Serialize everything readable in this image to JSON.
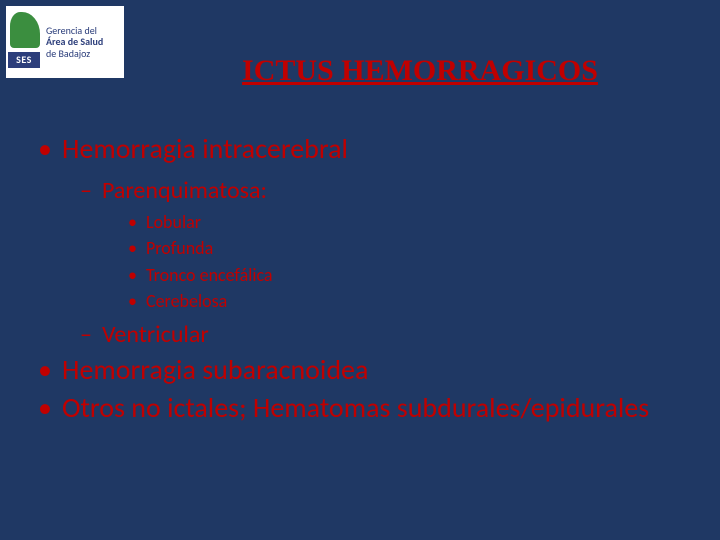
{
  "logo": {
    "line1": "Gerencia del",
    "line2_bold": "Área de Salud",
    "line3": "de Badajoz",
    "ses": "SES"
  },
  "title": "ICTUS HEMORRAGICOS",
  "bullets": {
    "b1": "Hemorragia intracerebral",
    "b1_s1": "Parenquimatosa:",
    "b1_s1_i1": "Lobular",
    "b1_s1_i2": "Profunda",
    "b1_s1_i3": "Tronco encefálica",
    "b1_s1_i4": "Cerebelosa",
    "b1_s2": "Ventricular",
    "b2": "Hemorragia subaracnoidea",
    "b3": "Otros no ictales;  Hematomas subdurales/epidurales"
  },
  "colors": {
    "background": "#1F3864",
    "accent": "#C00000",
    "logo_green": "#3B8E3F",
    "logo_blue": "#2C3E7B"
  }
}
